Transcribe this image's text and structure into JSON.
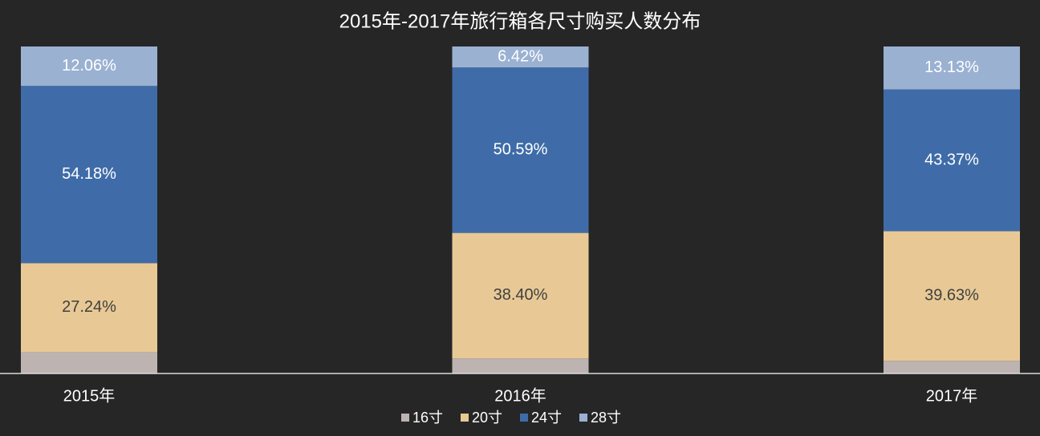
{
  "chart_data": {
    "type": "stacked_bar",
    "title": "2015年-2017年旅行箱各尺寸购买人数分布",
    "categories": [
      "2015年",
      "2016年",
      "2017年"
    ],
    "ylim": [
      0,
      100
    ],
    "series": [
      {
        "name": "16寸",
        "color": "#bdb3b1",
        "values": [
          6.52,
          4.59,
          3.87
        ]
      },
      {
        "name": "20寸",
        "color": "#e8c995",
        "values": [
          27.24,
          38.4,
          39.63
        ],
        "value_labels": [
          "27.24%",
          "38.40%",
          "39.63%"
        ],
        "label_color": "#404040"
      },
      {
        "name": "24寸",
        "color": "#3f6ca8",
        "values": [
          54.18,
          50.59,
          43.37
        ],
        "value_labels": [
          "54.18%",
          "50.59%",
          "43.37%"
        ],
        "label_color": "#ffffff"
      },
      {
        "name": "28寸",
        "color": "#9ab1d2",
        "values": [
          12.06,
          6.42,
          13.13
        ],
        "value_labels": [
          "12.06%",
          "6.42%",
          "13.13%"
        ],
        "label_color": "#ffffff"
      }
    ],
    "legend": "bottom"
  }
}
